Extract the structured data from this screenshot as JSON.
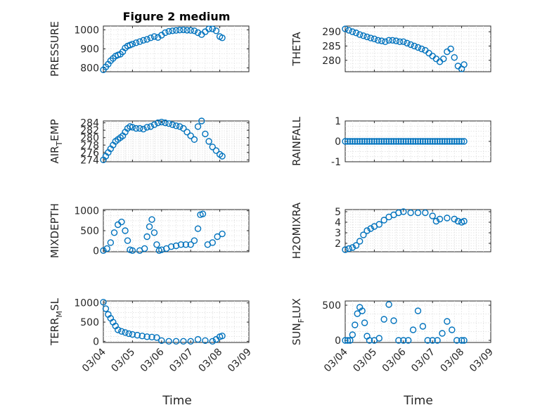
{
  "figure": {
    "title": "Figure 2 medium",
    "marker_color": "#0072bd",
    "x_ticks": [
      "03/04",
      "03/05",
      "03/06",
      "03/07",
      "03/08",
      "03/09"
    ],
    "x_label": "Time"
  },
  "chart_data": [
    {
      "type": "scatter",
      "ylabel": "PRESSURE",
      "xlim": [
        "03/04",
        "03/09"
      ],
      "ylim": [
        780,
        1020
      ],
      "yticks": [
        800,
        900,
        1000
      ],
      "grid": true,
      "title": "Figure 2 medium",
      "points": [
        [
          "03/04 00:00",
          790
        ],
        [
          "03/04 02:00",
          805
        ],
        [
          "03/04 04:00",
          820
        ],
        [
          "03/04 06:00",
          838
        ],
        [
          "03/04 08:00",
          850
        ],
        [
          "03/04 10:00",
          862
        ],
        [
          "03/04 12:00",
          868
        ],
        [
          "03/04 14:00",
          872
        ],
        [
          "03/04 16:00",
          885
        ],
        [
          "03/04 18:00",
          905
        ],
        [
          "03/04 20:00",
          915
        ],
        [
          "03/04 22:00",
          920
        ],
        [
          "03/05 00:00",
          925
        ],
        [
          "03/05 03:00",
          932
        ],
        [
          "03/05 06:00",
          938
        ],
        [
          "03/05 09:00",
          945
        ],
        [
          "03/05 12:00",
          950
        ],
        [
          "03/05 15:00",
          958
        ],
        [
          "03/05 18:00",
          965
        ],
        [
          "03/05 21:00",
          960
        ],
        [
          "03/06 00:00",
          972
        ],
        [
          "03/06 03:00",
          985
        ],
        [
          "03/06 06:00",
          992
        ],
        [
          "03/06 09:00",
          995
        ],
        [
          "03/06 12:00",
          997
        ],
        [
          "03/06 15:00",
          999
        ],
        [
          "03/06 18:00",
          1000
        ],
        [
          "03/06 21:00",
          998
        ],
        [
          "03/07 00:00",
          997
        ],
        [
          "03/07 03:00",
          995
        ],
        [
          "03/07 06:00",
          985
        ],
        [
          "03/07 09:00",
          975
        ],
        [
          "03/07 12:00",
          990
        ],
        [
          "03/07 15:00",
          1005
        ],
        [
          "03/07 18:00",
          1005
        ],
        [
          "03/07 21:00",
          995
        ],
        [
          "03/08 00:00",
          965
        ],
        [
          "03/08 02:00",
          958
        ]
      ]
    },
    {
      "type": "scatter",
      "ylabel": "THETA",
      "xlim": [
        "03/04",
        "03/09"
      ],
      "ylim": [
        276,
        292
      ],
      "yticks": [
        280,
        285,
        290
      ],
      "grid": true,
      "points": [
        [
          "03/04 00:00",
          291
        ],
        [
          "03/04 03:00",
          290.5
        ],
        [
          "03/04 06:00",
          290
        ],
        [
          "03/04 09:00",
          289.6
        ],
        [
          "03/04 12:00",
          289
        ],
        [
          "03/04 15:00",
          288.6
        ],
        [
          "03/04 18:00",
          288.2
        ],
        [
          "03/04 21:00",
          287.8
        ],
        [
          "03/05 00:00",
          287.5
        ],
        [
          "03/05 03:00",
          287
        ],
        [
          "03/05 06:00",
          286.8
        ],
        [
          "03/05 09:00",
          286.5
        ],
        [
          "03/05 12:00",
          287
        ],
        [
          "03/05 15:00",
          287
        ],
        [
          "03/05 18:00",
          286.8
        ],
        [
          "03/05 21:00",
          286.5
        ],
        [
          "03/06 00:00",
          286.5
        ],
        [
          "03/06 03:00",
          286
        ],
        [
          "03/06 06:00",
          285.5
        ],
        [
          "03/06 09:00",
          285
        ],
        [
          "03/06 12:00",
          284.5
        ],
        [
          "03/06 15:00",
          284
        ],
        [
          "03/06 18:00",
          283.5
        ],
        [
          "03/06 21:00",
          282.5
        ],
        [
          "03/07 00:00",
          281.5
        ],
        [
          "03/07 03:00",
          280.5
        ],
        [
          "03/07 06:00",
          279.5
        ],
        [
          "03/07 09:00",
          280.5
        ],
        [
          "03/07 12:00",
          283
        ],
        [
          "03/07 15:00",
          284
        ],
        [
          "03/07 18:00",
          281
        ],
        [
          "03/07 21:00",
          278
        ],
        [
          "03/08 00:00",
          277
        ],
        [
          "03/08 02:00",
          278.5
        ]
      ]
    },
    {
      "type": "scatter",
      "ylabel": "AIR",
      "ylabel_sub": "T",
      "ylabel_rest": "EMP",
      "xlim": [
        "03/04",
        "03/09"
      ],
      "ylim": [
        273.5,
        284.5
      ],
      "yticks": [
        274,
        276,
        278,
        280,
        282,
        284
      ],
      "grid": true,
      "points": [
        [
          "03/04 00:00",
          274
        ],
        [
          "03/04 02:00",
          275
        ],
        [
          "03/04 04:00",
          276
        ],
        [
          "03/04 06:00",
          277
        ],
        [
          "03/04 08:00",
          278
        ],
        [
          "03/04 10:00",
          279
        ],
        [
          "03/04 12:00",
          279.5
        ],
        [
          "03/04 14:00",
          280
        ],
        [
          "03/04 16:00",
          280.5
        ],
        [
          "03/04 18:00",
          281.5
        ],
        [
          "03/04 20:00",
          282.5
        ],
        [
          "03/04 22:00",
          283
        ],
        [
          "03/05 00:00",
          282.8
        ],
        [
          "03/05 03:00",
          282.5
        ],
        [
          "03/05 06:00",
          282.5
        ],
        [
          "03/05 09:00",
          282.3
        ],
        [
          "03/05 12:00",
          282.8
        ],
        [
          "03/05 15:00",
          283
        ],
        [
          "03/05 18:00",
          283.5
        ],
        [
          "03/05 21:00",
          284
        ],
        [
          "03/06 00:00",
          284.2
        ],
        [
          "03/06 03:00",
          284
        ],
        [
          "03/06 06:00",
          283.8
        ],
        [
          "03/06 09:00",
          283.5
        ],
        [
          "03/06 12:00",
          283.2
        ],
        [
          "03/06 15:00",
          283
        ],
        [
          "03/06 18:00",
          282.5
        ],
        [
          "03/06 21:00",
          281.5
        ],
        [
          "03/07 00:00",
          280.5
        ],
        [
          "03/07 03:00",
          279.5
        ],
        [
          "03/07 06:00",
          283
        ],
        [
          "03/07 09:00",
          284.5
        ],
        [
          "03/07 12:00",
          281
        ],
        [
          "03/07 15:00",
          279
        ],
        [
          "03/07 18:00",
          277.5
        ],
        [
          "03/07 21:00",
          276.5
        ],
        [
          "03/08 00:00",
          275.5
        ],
        [
          "03/08 02:00",
          275
        ]
      ]
    },
    {
      "type": "scatter",
      "ylabel": "RAINFALL",
      "xlim": [
        "03/04",
        "03/09"
      ],
      "ylim": [
        -1,
        1
      ],
      "yticks": [
        -1,
        0,
        1
      ],
      "grid": true,
      "constant_value": 0,
      "x_start": "03/04 00:00",
      "x_end": "03/08 02:00",
      "step_hours": 2
    },
    {
      "type": "scatter",
      "ylabel": "MIXDEPTH",
      "xlim": [
        "03/04",
        "03/09"
      ],
      "ylim": [
        -30,
        1030
      ],
      "yticks": [
        0,
        500,
        1000
      ],
      "grid": true,
      "points": [
        [
          "03/04 00:00",
          0
        ],
        [
          "03/04 03:00",
          50
        ],
        [
          "03/04 06:00",
          200
        ],
        [
          "03/04 09:00",
          450
        ],
        [
          "03/04 12:00",
          650
        ],
        [
          "03/04 15:00",
          720
        ],
        [
          "03/04 18:00",
          500
        ],
        [
          "03/04 20:00",
          250
        ],
        [
          "03/04 22:00",
          20
        ],
        [
          "03/05 00:00",
          0
        ],
        [
          "03/05 06:00",
          0
        ],
        [
          "03/05 10:00",
          50
        ],
        [
          "03/05 12:00",
          350
        ],
        [
          "03/05 14:00",
          600
        ],
        [
          "03/05 16:00",
          780
        ],
        [
          "03/05 18:00",
          450
        ],
        [
          "03/05 20:00",
          150
        ],
        [
          "03/05 22:00",
          0
        ],
        [
          "03/06 00:00",
          20
        ],
        [
          "03/06 04:00",
          50
        ],
        [
          "03/06 08:00",
          100
        ],
        [
          "03/06 12:00",
          120
        ],
        [
          "03/06 16:00",
          150
        ],
        [
          "03/06 20:00",
          150
        ],
        [
          "03/07 00:00",
          150
        ],
        [
          "03/07 03:00",
          250
        ],
        [
          "03/07 06:00",
          550
        ],
        [
          "03/07 08:00",
          900
        ],
        [
          "03/07 10:00",
          920
        ],
        [
          "03/07 14:00",
          150
        ],
        [
          "03/07 18:00",
          200
        ],
        [
          "03/07 22:00",
          350
        ],
        [
          "03/08 02:00",
          420
        ]
      ]
    },
    {
      "type": "scatter",
      "ylabel": "H2OMIXRA",
      "xlim": [
        "03/04",
        "03/09"
      ],
      "ylim": [
        1.2,
        5.2
      ],
      "yticks": [
        2,
        3,
        4,
        5
      ],
      "grid": true,
      "points": [
        [
          "03/04 00:00",
          1.4
        ],
        [
          "03/04 03:00",
          1.5
        ],
        [
          "03/04 06:00",
          1.6
        ],
        [
          "03/04 09:00",
          1.8
        ],
        [
          "03/04 12:00",
          2.2
        ],
        [
          "03/04 15:00",
          2.8
        ],
        [
          "03/04 18:00",
          3.2
        ],
        [
          "03/04 21:00",
          3.4
        ],
        [
          "03/05 00:00",
          3.6
        ],
        [
          "03/05 04:00",
          3.8
        ],
        [
          "03/05 08:00",
          4.2
        ],
        [
          "03/05 12:00",
          4.5
        ],
        [
          "03/05 16:00",
          4.7
        ],
        [
          "03/05 20:00",
          4.9
        ],
        [
          "03/06 00:00",
          5.0
        ],
        [
          "03/06 06:00",
          4.9
        ],
        [
          "03/06 12:00",
          4.9
        ],
        [
          "03/06 18:00",
          4.9
        ],
        [
          "03/07 00:00",
          4.6
        ],
        [
          "03/07 03:00",
          4.1
        ],
        [
          "03/07 06:00",
          4.3
        ],
        [
          "03/07 12:00",
          4.4
        ],
        [
          "03/07 18:00",
          4.3
        ],
        [
          "03/07 21:00",
          4.1
        ],
        [
          "03/08 00:00",
          4.0
        ],
        [
          "03/08 02:00",
          4.1
        ]
      ]
    },
    {
      "type": "scatter",
      "ylabel": "TERR",
      "ylabel_sub": "M",
      "ylabel_rest": "SL",
      "xlim": [
        "03/04",
        "03/09"
      ],
      "ylim": [
        -30,
        1050
      ],
      "yticks": [
        0,
        500,
        1000
      ],
      "grid": true,
      "points": [
        [
          "03/04 00:00",
          1020
        ],
        [
          "03/04 02:00",
          850
        ],
        [
          "03/04 04:00",
          700
        ],
        [
          "03/04 06:00",
          600
        ],
        [
          "03/04 08:00",
          500
        ],
        [
          "03/04 10:00",
          400
        ],
        [
          "03/04 12:00",
          300
        ],
        [
          "03/04 15:00",
          260
        ],
        [
          "03/04 18:00",
          230
        ],
        [
          "03/04 21:00",
          200
        ],
        [
          "03/05 00:00",
          180
        ],
        [
          "03/05 04:00",
          160
        ],
        [
          "03/05 08:00",
          140
        ],
        [
          "03/05 12:00",
          120
        ],
        [
          "03/05 16:00",
          110
        ],
        [
          "03/05 20:00",
          100
        ],
        [
          "03/06 00:00",
          20
        ],
        [
          "03/06 06:00",
          0
        ],
        [
          "03/06 12:00",
          0
        ],
        [
          "03/06 18:00",
          0
        ],
        [
          "03/07 00:00",
          0
        ],
        [
          "03/07 06:00",
          50
        ],
        [
          "03/07 12:00",
          20
        ],
        [
          "03/07 18:00",
          0
        ],
        [
          "03/07 21:00",
          50
        ],
        [
          "03/08 00:00",
          120
        ],
        [
          "03/08 02:00",
          140
        ]
      ]
    },
    {
      "type": "scatter",
      "ylabel": "SUN",
      "ylabel_sub": "F",
      "ylabel_rest": "LUX",
      "xlim": [
        "03/04",
        "03/09"
      ],
      "ylim": [
        -30,
        560
      ],
      "yticks": [
        0,
        500
      ],
      "grid": true,
      "points": [
        [
          "03/04 00:00",
          0
        ],
        [
          "03/04 02:00",
          0
        ],
        [
          "03/04 04:00",
          0
        ],
        [
          "03/04 06:00",
          80
        ],
        [
          "03/04 08:00",
          220
        ],
        [
          "03/04 10:00",
          380
        ],
        [
          "03/04 12:00",
          470
        ],
        [
          "03/04 14:00",
          420
        ],
        [
          "03/04 16:00",
          250
        ],
        [
          "03/04 18:00",
          60
        ],
        [
          "03/04 20:00",
          0
        ],
        [
          "03/05 00:00",
          0
        ],
        [
          "03/05 04:00",
          30
        ],
        [
          "03/05 08:00",
          300
        ],
        [
          "03/05 12:00",
          510
        ],
        [
          "03/05 16:00",
          280
        ],
        [
          "03/05 20:00",
          0
        ],
        [
          "03/06 00:00",
          0
        ],
        [
          "03/06 04:00",
          0
        ],
        [
          "03/06 08:00",
          150
        ],
        [
          "03/06 12:00",
          420
        ],
        [
          "03/06 16:00",
          200
        ],
        [
          "03/06 20:00",
          0
        ],
        [
          "03/07 00:00",
          0
        ],
        [
          "03/07 04:00",
          0
        ],
        [
          "03/07 08:00",
          100
        ],
        [
          "03/07 12:00",
          270
        ],
        [
          "03/07 16:00",
          150
        ],
        [
          "03/07 20:00",
          0
        ],
        [
          "03/08 00:00",
          0
        ],
        [
          "03/08 02:00",
          0
        ]
      ]
    }
  ]
}
